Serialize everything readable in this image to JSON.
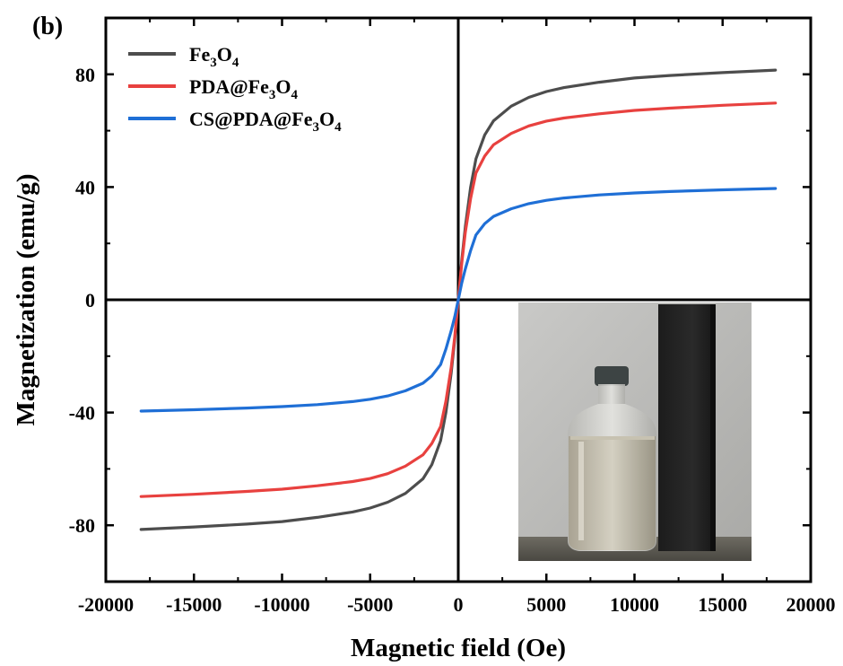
{
  "chart_data": {
    "type": "line",
    "panel_label": "(b)",
    "xlabel": "Magnetic field (Oe)",
    "ylabel": "Magnetization (emu/g)",
    "xlim": [
      -20000,
      20000
    ],
    "ylim": [
      -100,
      100
    ],
    "xticks": [
      -20000,
      -15000,
      -10000,
      -5000,
      0,
      5000,
      10000,
      15000,
      20000
    ],
    "xtick_labels": [
      "-20000",
      "-15000",
      "-10000",
      "-5000",
      "0",
      "5000",
      "10000",
      "15000",
      "20000"
    ],
    "yticks": [
      -80,
      -40,
      0,
      40,
      80
    ],
    "ytick_labels": [
      "-80",
      "-40",
      "0",
      "40",
      "80"
    ],
    "legend_position": "top-left",
    "grid": false,
    "inset": "photograph: glass vial with magnetic nanoparticle dispersion beside a black magnet",
    "series": [
      {
        "name": "Fe3O4",
        "label_parts": [
          [
            "Fe",
            "3",
            "O",
            "4"
          ]
        ],
        "color": "#4d4d4d",
        "x": [
          -18000,
          -15000,
          -12000,
          -10000,
          -8000,
          -6000,
          -5000,
          -4000,
          -3000,
          -2000,
          -1500,
          -1000,
          -700,
          -400,
          -200,
          0,
          200,
          400,
          700,
          1000,
          1500,
          2000,
          3000,
          4000,
          5000,
          6000,
          8000,
          10000,
          12000,
          15000,
          18000
        ],
        "y": [
          -81.5,
          -80.6,
          -79.6,
          -78.7,
          -77.2,
          -75.3,
          -73.9,
          -71.8,
          -68.7,
          -63.5,
          -58.5,
          -50.0,
          -40.0,
          -26.0,
          -14.0,
          0,
          14.0,
          26.0,
          40.0,
          50.0,
          58.5,
          63.5,
          68.7,
          71.8,
          73.9,
          75.3,
          77.2,
          78.7,
          79.6,
          80.6,
          81.5
        ]
      },
      {
        "name": "PDA@Fe3O4",
        "label_parts": [
          [
            "PDA@Fe",
            "3",
            "O",
            "4"
          ]
        ],
        "color": "#e8413f",
        "x": [
          -18000,
          -15000,
          -12000,
          -10000,
          -8000,
          -6000,
          -5000,
          -4000,
          -3000,
          -2000,
          -1500,
          -1000,
          -700,
          -400,
          -200,
          0,
          200,
          400,
          700,
          1000,
          1500,
          2000,
          3000,
          4000,
          5000,
          6000,
          8000,
          10000,
          12000,
          15000,
          18000
        ],
        "y": [
          -69.8,
          -69.0,
          -68.0,
          -67.2,
          -66.0,
          -64.5,
          -63.4,
          -61.7,
          -59.0,
          -55.0,
          -51.0,
          -45.0,
          -36.0,
          -24.0,
          -13.0,
          0,
          13.0,
          24.0,
          36.0,
          45.0,
          51.0,
          55.0,
          59.0,
          61.7,
          63.4,
          64.5,
          66.0,
          67.2,
          68.0,
          69.0,
          69.8
        ]
      },
      {
        "name": "CS@PDA@Fe3O4",
        "label_parts": [
          [
            "CS@PDA@Fe",
            "3",
            "O",
            "4"
          ]
        ],
        "color": "#1f6fd6",
        "x": [
          -18000,
          -15000,
          -12000,
          -10000,
          -8000,
          -6000,
          -5000,
          -4000,
          -3000,
          -2000,
          -1500,
          -1000,
          -700,
          -400,
          -200,
          0,
          200,
          400,
          700,
          1000,
          1500,
          2000,
          3000,
          4000,
          5000,
          6000,
          8000,
          10000,
          12000,
          15000,
          18000
        ],
        "y": [
          -39.5,
          -39.0,
          -38.4,
          -37.9,
          -37.2,
          -36.1,
          -35.3,
          -34.1,
          -32.3,
          -29.6,
          -27.0,
          -23.0,
          -17.5,
          -11.0,
          -6.0,
          0,
          6.0,
          11.0,
          17.5,
          23.0,
          27.0,
          29.6,
          32.3,
          34.1,
          35.3,
          36.1,
          37.2,
          37.9,
          38.4,
          39.0,
          39.5
        ]
      }
    ]
  }
}
